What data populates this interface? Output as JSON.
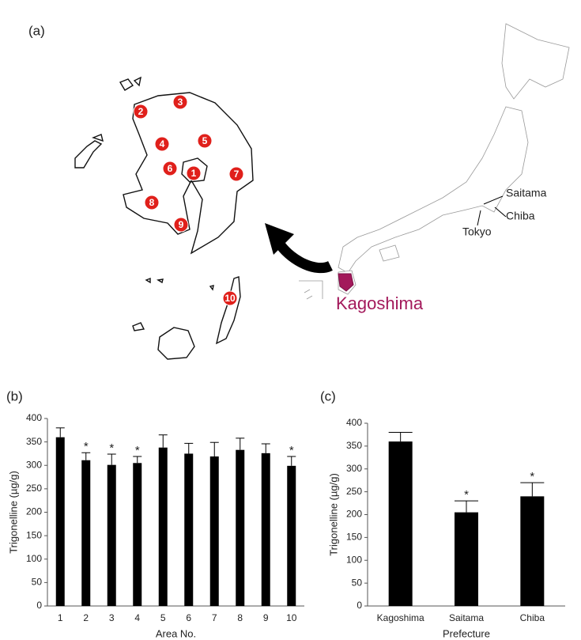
{
  "panels": {
    "a": "(a)",
    "b": "(b)",
    "c": "(c)"
  },
  "map": {
    "area_markers": [
      "1",
      "2",
      "3",
      "4",
      "5",
      "6",
      "7",
      "8",
      "9",
      "10"
    ],
    "prefecture_labels": [
      "Saitama",
      "Chiba",
      "Tokyo"
    ],
    "highlight": "Kagoshima"
  },
  "chart_data": [
    {
      "type": "bar",
      "x_label": "Area No.",
      "y_label": "Trigonelline (µg/g)",
      "categories": [
        "1",
        "2",
        "3",
        "4",
        "5",
        "6",
        "7",
        "8",
        "9",
        "10"
      ],
      "values": [
        360,
        311,
        301,
        305,
        338,
        325,
        319,
        333,
        326,
        299
      ],
      "errors": [
        20,
        16,
        23,
        14,
        27,
        22,
        30,
        25,
        20,
        20
      ],
      "significance": [
        null,
        "*",
        "*",
        "*",
        null,
        null,
        null,
        null,
        null,
        "*"
      ],
      "color": "#000000",
      "ylim": [
        0,
        400
      ],
      "yticks": [
        0,
        50,
        100,
        150,
        200,
        250,
        300,
        350,
        400
      ]
    },
    {
      "type": "bar",
      "x_label": "Prefecture",
      "y_label": "Trigonelline (µg/g)",
      "categories": [
        "Kagoshima",
        "Saitama",
        "Chiba"
      ],
      "values": [
        360,
        205,
        240
      ],
      "errors": [
        20,
        25,
        30
      ],
      "significance": [
        null,
        "*",
        "*"
      ],
      "color": "#000000",
      "ylim": [
        0,
        400
      ],
      "yticks": [
        0,
        50,
        100,
        150,
        200,
        250,
        300,
        350,
        400
      ]
    }
  ]
}
